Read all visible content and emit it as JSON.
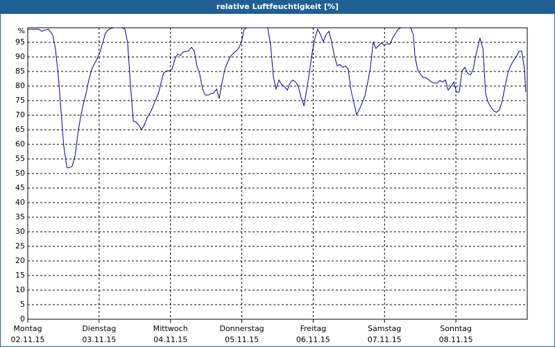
{
  "chart_data": {
    "type": "line",
    "title": "relative Luftfeuchtigkeit [%]",
    "xlim": [
      0,
      168
    ],
    "xticks": [
      {
        "value": 0,
        "label": "Montag",
        "date": "02.11.15"
      },
      {
        "value": 24,
        "label": "Dienstag",
        "date": "03.11.15"
      },
      {
        "value": 48,
        "label": "Mittwoch",
        "date": "04.11.15"
      },
      {
        "value": 72,
        "label": "Donnerstag",
        "date": "05.11.15"
      },
      {
        "value": 96,
        "label": "Freitag",
        "date": "06.11.15"
      },
      {
        "value": 120,
        "label": "Samstag",
        "date": "07.11.15"
      },
      {
        "value": 144,
        "label": "Sonntag",
        "date": "08.11.15"
      }
    ],
    "ylim": [
      0,
      100
    ],
    "yticks": [
      0,
      5,
      10,
      15,
      20,
      25,
      30,
      35,
      40,
      45,
      50,
      55,
      60,
      65,
      70,
      75,
      80,
      85,
      90,
      95,
      {
        "value": 100,
        "label": "%"
      }
    ],
    "grid": true,
    "series": [
      {
        "color": "#00008b",
        "x": [
          0,
          2.3,
          3.7,
          4.7,
          6.1,
          7.0,
          8.4,
          9.3,
          10.3,
          11.2,
          12.1,
          13.1,
          13.5,
          14.9,
          15.9,
          16.8,
          17.7,
          18.7,
          19.6,
          20.5,
          21.5,
          22.4,
          23.3,
          24.3,
          25.2,
          26.1,
          27.1,
          28.0,
          28.9,
          31.7,
          32.7,
          33.6,
          34.5,
          35.5,
          36.4,
          37.3,
          38.3,
          39.2,
          40.1,
          41.1,
          42.0,
          42.9,
          43.9,
          44.8,
          45.7,
          46.7,
          47.6,
          48.5,
          49.5,
          50.4,
          51.3,
          52.3,
          53.2,
          54.1,
          55.1,
          56.0,
          56.9,
          57.9,
          58.8,
          59.7,
          60.7,
          61.6,
          62.5,
          63.5,
          64.4,
          65.3,
          66.3,
          67.2,
          68.1,
          69.1,
          70.0,
          70.9,
          71.9,
          72.8,
          73.7,
          80.7,
          81.7,
          82.6,
          83.5,
          84.5,
          85.4,
          86.3,
          87.3,
          88.2,
          89.1,
          90.1,
          91.0,
          91.9,
          92.9,
          93.8,
          94.7,
          95.7,
          96.6,
          97.5,
          98.5,
          99.4,
          100.3,
          101.3,
          102.2,
          103.1,
          104.1,
          105.0,
          105.9,
          106.9,
          107.8,
          108.7,
          109.7,
          110.6,
          111.5,
          112.5,
          113.4,
          114.3,
          115.3,
          116.2,
          117.1,
          118.1,
          119.0,
          119.9,
          120.9,
          121.8,
          122.7,
          123.7,
          124.6,
          125.5,
          128.8,
          129.7,
          130.2,
          131.1,
          132.1,
          133.0,
          133.9,
          134.9,
          135.8,
          136.7,
          137.7,
          138.6,
          139.5,
          140.5,
          141.4,
          142.3,
          143.3,
          144.2,
          145.1,
          146.1,
          147.0,
          147.9,
          148.9,
          149.8,
          150.7,
          151.7,
          152.1,
          153.1,
          154.0,
          154.9,
          155.9,
          156.8,
          157.7,
          158.7,
          159.6,
          160.5,
          161.5,
          162.4,
          163.3,
          164.3,
          165.2,
          166.1,
          167.1,
          167.5
        ],
        "values": [
          99.5,
          99.5,
          99.5,
          98.8,
          99.3,
          99.5,
          97.6,
          92.9,
          83.3,
          71.4,
          59.5,
          52.4,
          51.9,
          52.4,
          56.0,
          63.1,
          69.0,
          73.8,
          77.4,
          81.9,
          85.7,
          87.6,
          89.3,
          91.7,
          94.8,
          98.1,
          99.3,
          99.8,
          100,
          100,
          99.5,
          94.8,
          81.0,
          67.9,
          67.6,
          66.7,
          65.0,
          66.7,
          69.0,
          70.7,
          72.6,
          75.0,
          77.4,
          81.0,
          84.5,
          85.2,
          85.2,
          85.7,
          89.3,
          91.0,
          90.5,
          91.7,
          91.9,
          92.1,
          93.3,
          92.1,
          86.9,
          83.8,
          79.0,
          76.9,
          76.9,
          77.4,
          77.6,
          79.0,
          75.7,
          81.0,
          85.7,
          88.1,
          90.0,
          91.2,
          91.9,
          92.9,
          95.2,
          99.5,
          100,
          100,
          94.0,
          83.3,
          79.0,
          82.1,
          80.5,
          79.8,
          78.6,
          81.0,
          82.1,
          81.4,
          79.8,
          76.2,
          73.3,
          78.6,
          84.5,
          91.7,
          96.4,
          99.5,
          97.6,
          95.2,
          97.6,
          98.8,
          95.2,
          90.5,
          86.9,
          87.4,
          86.4,
          86.9,
          85.7,
          78.6,
          74.3,
          70.2,
          71.9,
          74.3,
          76.7,
          81.0,
          86.7,
          95.2,
          92.9,
          94.0,
          94.8,
          94.0,
          94.5,
          94.3,
          96.4,
          98.1,
          99.5,
          100,
          100,
          97.6,
          90.5,
          85.7,
          84.0,
          82.9,
          82.9,
          82.1,
          81.4,
          81.0,
          81.0,
          81.9,
          81.4,
          82.1,
          78.6,
          79.8,
          81.4,
          77.9,
          77.9,
          85.2,
          86.4,
          84.5,
          83.8,
          85.7,
          90.5,
          94.8,
          96.4,
          92.9,
          77.4,
          74.3,
          72.6,
          71.4,
          71.0,
          71.9,
          75.0,
          79.8,
          84.5,
          86.9,
          88.6,
          90.0,
          91.9,
          92.1,
          85.7,
          77.9
        ]
      }
    ]
  }
}
